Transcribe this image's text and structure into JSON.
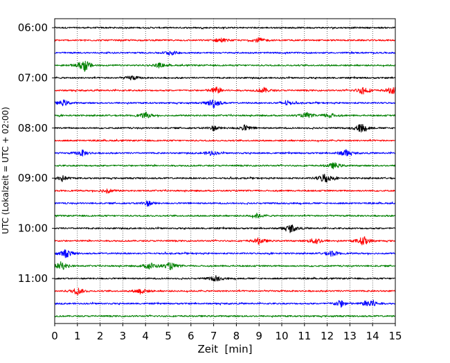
{
  "chart_data": {
    "type": "line",
    "title": "",
    "xlabel": "Zeit  [min]",
    "ylabel": "UTC (Lokalzeit = UTC + 02:00)",
    "xlim": [
      0,
      15
    ],
    "x_ticks": [
      0,
      1,
      2,
      3,
      4,
      5,
      6,
      7,
      8,
      9,
      10,
      11,
      12,
      13,
      14,
      15
    ],
    "y_tick_labels": [
      "06:00",
      "07:00",
      "08:00",
      "09:00",
      "10:00",
      "11:00"
    ],
    "grid": "vertical dotted",
    "colors": [
      "#000000",
      "#ff0000",
      "#0000ff",
      "#008000"
    ],
    "series": [
      {
        "row_start": "06:00",
        "color": "#000000",
        "events": []
      },
      {
        "row_start": "06:15",
        "color": "#ff0000",
        "events": [
          {
            "x": 7.3,
            "amp": 0.4
          },
          {
            "x": 9.0,
            "amp": 0.4
          }
        ]
      },
      {
        "row_start": "06:30",
        "color": "#0000ff",
        "events": [
          {
            "x": 5.1,
            "amp": 0.4
          }
        ]
      },
      {
        "row_start": "06:45",
        "color": "#008000",
        "events": [
          {
            "x": 1.3,
            "amp": 1.1
          },
          {
            "x": 4.6,
            "amp": 0.35
          }
        ]
      },
      {
        "row_start": "07:00",
        "color": "#000000",
        "events": [
          {
            "x": 3.4,
            "amp": 0.4
          }
        ]
      },
      {
        "row_start": "07:15",
        "color": "#ff0000",
        "events": [
          {
            "x": 7.1,
            "amp": 0.6
          },
          {
            "x": 9.2,
            "amp": 0.45
          },
          {
            "x": 13.6,
            "amp": 0.7
          },
          {
            "x": 14.9,
            "amp": 0.7
          }
        ]
      },
      {
        "row_start": "07:30",
        "color": "#0000ff",
        "events": [
          {
            "x": 0.4,
            "amp": 0.45
          },
          {
            "x": 7.0,
            "amp": 0.8
          },
          {
            "x": 10.2,
            "amp": 0.4
          }
        ]
      },
      {
        "row_start": "07:45",
        "color": "#008000",
        "events": [
          {
            "x": 4.0,
            "amp": 0.5
          },
          {
            "x": 11.1,
            "amp": 0.45
          },
          {
            "x": 12.1,
            "amp": 0.45
          }
        ]
      },
      {
        "row_start": "08:00",
        "color": "#000000",
        "events": [
          {
            "x": 7.0,
            "amp": 0.4
          },
          {
            "x": 8.4,
            "amp": 0.5
          },
          {
            "x": 13.5,
            "amp": 0.8
          }
        ]
      },
      {
        "row_start": "08:15",
        "color": "#ff0000",
        "events": []
      },
      {
        "row_start": "08:30",
        "color": "#0000ff",
        "events": [
          {
            "x": 1.2,
            "amp": 0.5
          },
          {
            "x": 6.9,
            "amp": 0.4
          },
          {
            "x": 12.8,
            "amp": 0.6
          }
        ]
      },
      {
        "row_start": "08:45",
        "color": "#008000",
        "events": [
          {
            "x": 12.3,
            "amp": 0.5
          }
        ]
      },
      {
        "row_start": "09:00",
        "color": "#000000",
        "events": [
          {
            "x": 0.3,
            "amp": 0.5
          },
          {
            "x": 11.9,
            "amp": 0.9
          }
        ]
      },
      {
        "row_start": "09:15",
        "color": "#ff0000",
        "events": [
          {
            "x": 2.3,
            "amp": 0.4
          }
        ]
      },
      {
        "row_start": "09:30",
        "color": "#0000ff",
        "events": [
          {
            "x": 4.1,
            "amp": 0.45
          }
        ]
      },
      {
        "row_start": "09:45",
        "color": "#008000",
        "events": [
          {
            "x": 8.9,
            "amp": 0.35
          }
        ]
      },
      {
        "row_start": "10:00",
        "color": "#000000",
        "events": [
          {
            "x": 10.4,
            "amp": 0.7
          }
        ]
      },
      {
        "row_start": "10:15",
        "color": "#ff0000",
        "events": [
          {
            "x": 9.0,
            "amp": 0.5
          },
          {
            "x": 11.5,
            "amp": 0.6
          },
          {
            "x": 13.6,
            "amp": 0.8
          }
        ]
      },
      {
        "row_start": "10:30",
        "color": "#0000ff",
        "events": [
          {
            "x": 0.5,
            "amp": 0.7
          },
          {
            "x": 12.2,
            "amp": 0.5
          }
        ]
      },
      {
        "row_start": "10:45",
        "color": "#008000",
        "events": [
          {
            "x": 0.3,
            "amp": 0.7
          },
          {
            "x": 4.2,
            "amp": 0.6
          },
          {
            "x": 5.1,
            "amp": 0.6
          }
        ]
      },
      {
        "row_start": "11:00",
        "color": "#000000",
        "events": [
          {
            "x": 7.1,
            "amp": 0.5
          }
        ]
      },
      {
        "row_start": "11:15",
        "color": "#ff0000",
        "events": [
          {
            "x": 1.0,
            "amp": 0.6
          },
          {
            "x": 3.8,
            "amp": 0.5
          }
        ]
      },
      {
        "row_start": "11:30",
        "color": "#0000ff",
        "events": [
          {
            "x": 12.6,
            "amp": 0.6
          },
          {
            "x": 13.9,
            "amp": 0.9
          }
        ]
      },
      {
        "row_start": "11:45",
        "color": "#008000",
        "events": []
      }
    ]
  }
}
